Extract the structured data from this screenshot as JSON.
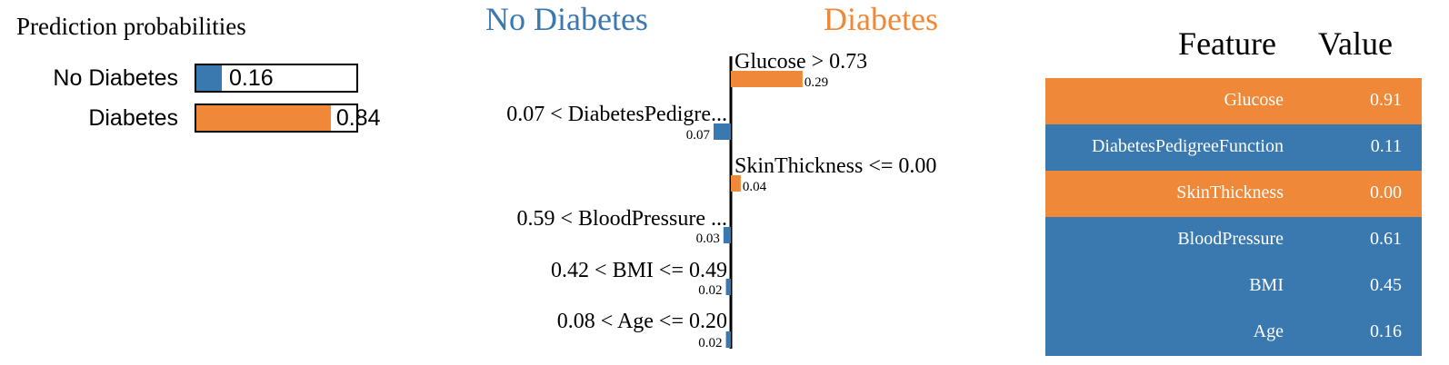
{
  "colors": {
    "no_diabetes": "#3a78b0",
    "diabetes": "#ef8838",
    "axis": "#000000"
  },
  "prediction_probabilities": {
    "title": "Prediction probabilities",
    "classes": [
      {
        "label": "No Diabetes",
        "value": 0.16,
        "value_text": "0.16"
      },
      {
        "label": "Diabetes",
        "value": 0.84,
        "value_text": "0.84"
      }
    ]
  },
  "explanation": {
    "left_class": "No Diabetes",
    "right_class": "Diabetes"
  },
  "feature_table": {
    "header_feature": "Feature",
    "header_value": "Value",
    "rows": [
      {
        "feature": "Glucose",
        "value": "0.91",
        "side": "diabetes"
      },
      {
        "feature": "DiabetesPedigreeFunction",
        "value": "0.11",
        "side": "no_diabetes"
      },
      {
        "feature": "SkinThickness",
        "value": "0.00",
        "side": "diabetes"
      },
      {
        "feature": "BloodPressure",
        "value": "0.61",
        "side": "no_diabetes"
      },
      {
        "feature": "BMI",
        "value": "0.45",
        "side": "no_diabetes"
      },
      {
        "feature": "Age",
        "value": "0.16",
        "side": "no_diabetes"
      }
    ]
  },
  "chart_data": {
    "type": "bar",
    "orientation": "horizontal",
    "categories": [
      "Glucose > 0.73",
      "0.07 < DiabetesPedigre...",
      "SkinThickness <= 0.00",
      "0.59 < BloodPressure ...",
      "0.42 < BMI <= 0.49",
      "0.08 < Age <= 0.20"
    ],
    "values": [
      0.29,
      -0.07,
      0.04,
      -0.03,
      -0.02,
      -0.02
    ],
    "value_labels": [
      "0.29",
      "0.07",
      "0.04",
      "0.03",
      "0.02",
      "0.02"
    ],
    "series": [
      {
        "name": "No Diabetes",
        "color": "#3a78b0"
      },
      {
        "name": "Diabetes",
        "color": "#ef8838"
      }
    ],
    "title": "",
    "xlabel": "",
    "ylabel": ""
  }
}
